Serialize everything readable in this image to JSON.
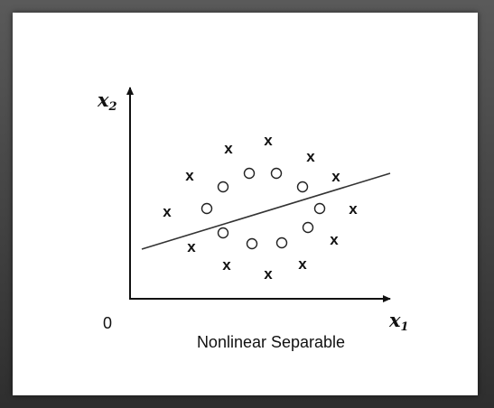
{
  "diagram": {
    "x_axis_symbol": "x",
    "x_axis_subscript": "1",
    "y_axis_symbol": "x",
    "y_axis_subscript": "2",
    "origin_label": "0",
    "caption": "Nonlinear Separable",
    "cross_glyph": "x",
    "colors": {
      "ink": "#111111",
      "line": "#333333",
      "frame": "#3a3a3a",
      "panel": "#ffffff"
    }
  }
}
